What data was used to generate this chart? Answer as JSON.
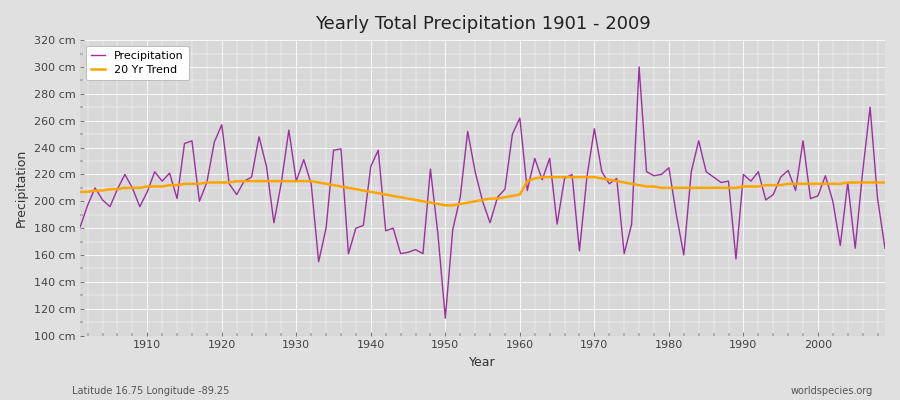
{
  "title": "Yearly Total Precipitation 1901 - 2009",
  "xlabel": "Year",
  "ylabel": "Precipitation",
  "subtitle": "Latitude 16.75 Longitude -89.25",
  "watermark": "worldspecies.org",
  "ylim": [
    100,
    320
  ],
  "yticks": [
    100,
    120,
    140,
    160,
    180,
    200,
    220,
    240,
    260,
    280,
    300,
    320
  ],
  "precip_color": "#9b30a0",
  "trend_color": "#ffa500",
  "bg_color": "#e0e0e0",
  "plot_bg_color": "#d8d8d8",
  "grid_color": "#ffffff",
  "years": [
    1901,
    1902,
    1903,
    1904,
    1905,
    1906,
    1907,
    1908,
    1909,
    1910,
    1911,
    1912,
    1913,
    1914,
    1915,
    1916,
    1917,
    1918,
    1919,
    1920,
    1921,
    1922,
    1923,
    1924,
    1925,
    1926,
    1927,
    1928,
    1929,
    1930,
    1931,
    1932,
    1933,
    1934,
    1935,
    1936,
    1937,
    1938,
    1939,
    1940,
    1941,
    1942,
    1943,
    1944,
    1945,
    1946,
    1947,
    1948,
    1949,
    1950,
    1951,
    1952,
    1953,
    1954,
    1955,
    1956,
    1957,
    1958,
    1959,
    1960,
    1961,
    1962,
    1963,
    1964,
    1965,
    1966,
    1967,
    1968,
    1969,
    1970,
    1971,
    1972,
    1973,
    1974,
    1975,
    1976,
    1977,
    1978,
    1979,
    1980,
    1981,
    1982,
    1983,
    1984,
    1985,
    1986,
    1987,
    1988,
    1989,
    1990,
    1991,
    1992,
    1993,
    1994,
    1995,
    1996,
    1997,
    1998,
    1999,
    2000,
    2001,
    2002,
    2003,
    2004,
    2005,
    2006,
    2007,
    2008,
    2009
  ],
  "precip": [
    181,
    197,
    210,
    201,
    196,
    209,
    220,
    210,
    196,
    207,
    222,
    215,
    221,
    202,
    243,
    245,
    200,
    214,
    244,
    257,
    213,
    205,
    215,
    218,
    248,
    226,
    184,
    214,
    253,
    215,
    231,
    213,
    155,
    180,
    238,
    239,
    161,
    180,
    182,
    226,
    238,
    178,
    180,
    161,
    162,
    164,
    161,
    224,
    176,
    113,
    179,
    203,
    252,
    222,
    200,
    184,
    203,
    209,
    250,
    262,
    208,
    232,
    216,
    232,
    183,
    217,
    220,
    163,
    218,
    254,
    222,
    213,
    217,
    161,
    183,
    300,
    222,
    219,
    220,
    225,
    190,
    160,
    222,
    245,
    222,
    218,
    214,
    215,
    157,
    220,
    215,
    222,
    201,
    205,
    218,
    223,
    208,
    245,
    202,
    204,
    219,
    200,
    167,
    214,
    165,
    222,
    270,
    202,
    165
  ],
  "trend": [
    207,
    207,
    208,
    208,
    209,
    209,
    210,
    210,
    210,
    211,
    211,
    211,
    212,
    212,
    213,
    213,
    213,
    214,
    214,
    214,
    214,
    215,
    215,
    215,
    215,
    215,
    215,
    215,
    215,
    215,
    215,
    215,
    214,
    213,
    212,
    211,
    210,
    209,
    208,
    207,
    206,
    205,
    204,
    203,
    202,
    201,
    200,
    199,
    198,
    197,
    197,
    198,
    199,
    200,
    201,
    202,
    202,
    203,
    204,
    205,
    215,
    217,
    218,
    218,
    218,
    218,
    218,
    218,
    218,
    218,
    217,
    216,
    215,
    214,
    213,
    212,
    211,
    211,
    210,
    210,
    210,
    210,
    210,
    210,
    210,
    210,
    210,
    210,
    210,
    211,
    211,
    211,
    212,
    212,
    212,
    213,
    213,
    213,
    213,
    213,
    213,
    213,
    213,
    214,
    214,
    214,
    214,
    214,
    214
  ]
}
